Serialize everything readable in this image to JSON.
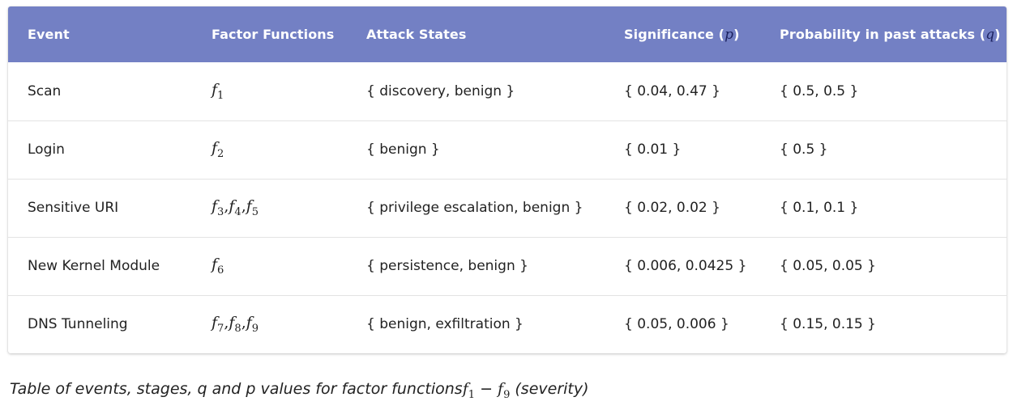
{
  "table": {
    "headers": {
      "event": "Event",
      "factor_functions": "Factor Functions",
      "attack_states": "Attack States",
      "significance": "Significance (",
      "significance_var": "p",
      "significance_close": ")",
      "probability": "Probability in past attacks (",
      "probability_var": "q",
      "probability_close": ")"
    },
    "rows": [
      {
        "event": "Scan",
        "factors": [
          {
            "base": "f",
            "sub": "1"
          }
        ],
        "states": "{ discovery, benign }",
        "significance": "{ 0.04, 0.47 }",
        "probability": "{ 0.5, 0.5 }"
      },
      {
        "event": "Login",
        "factors": [
          {
            "base": "f",
            "sub": "2"
          }
        ],
        "states": "{ benign }",
        "significance": "{ 0.01 }",
        "probability": "{ 0.5 }"
      },
      {
        "event": "Sensitive URI",
        "factors": [
          {
            "base": "f",
            "sub": "3"
          },
          {
            "base": "f",
            "sub": "4"
          },
          {
            "base": "f",
            "sub": "5"
          }
        ],
        "states": "{ privilege escalation, benign }",
        "significance": "{ 0.02, 0.02 }",
        "probability": "{ 0.1, 0.1 }"
      },
      {
        "event": "New Kernel Module",
        "factors": [
          {
            "base": "f",
            "sub": "6"
          }
        ],
        "states": "{ persistence, benign }",
        "significance": "{ 0.006, 0.0425 }",
        "probability": "{ 0.05, 0.05 }"
      },
      {
        "event": "DNS Tunneling",
        "factors": [
          {
            "base": "f",
            "sub": "7"
          },
          {
            "base": "f",
            "sub": "8"
          },
          {
            "base": "f",
            "sub": "9"
          }
        ],
        "states": "{ benign, exfiltration }",
        "significance": "{ 0.05, 0.006 }",
        "probability": "{ 0.15, 0.15 }"
      }
    ]
  },
  "caption": {
    "text": "Table of events, stages, q and p values for factor functions",
    "range_from": {
      "base": "f",
      "sub": "1"
    },
    "minus": " − ",
    "range_to": {
      "base": "f",
      "sub": "9"
    },
    "suffix": "  (severity)"
  }
}
